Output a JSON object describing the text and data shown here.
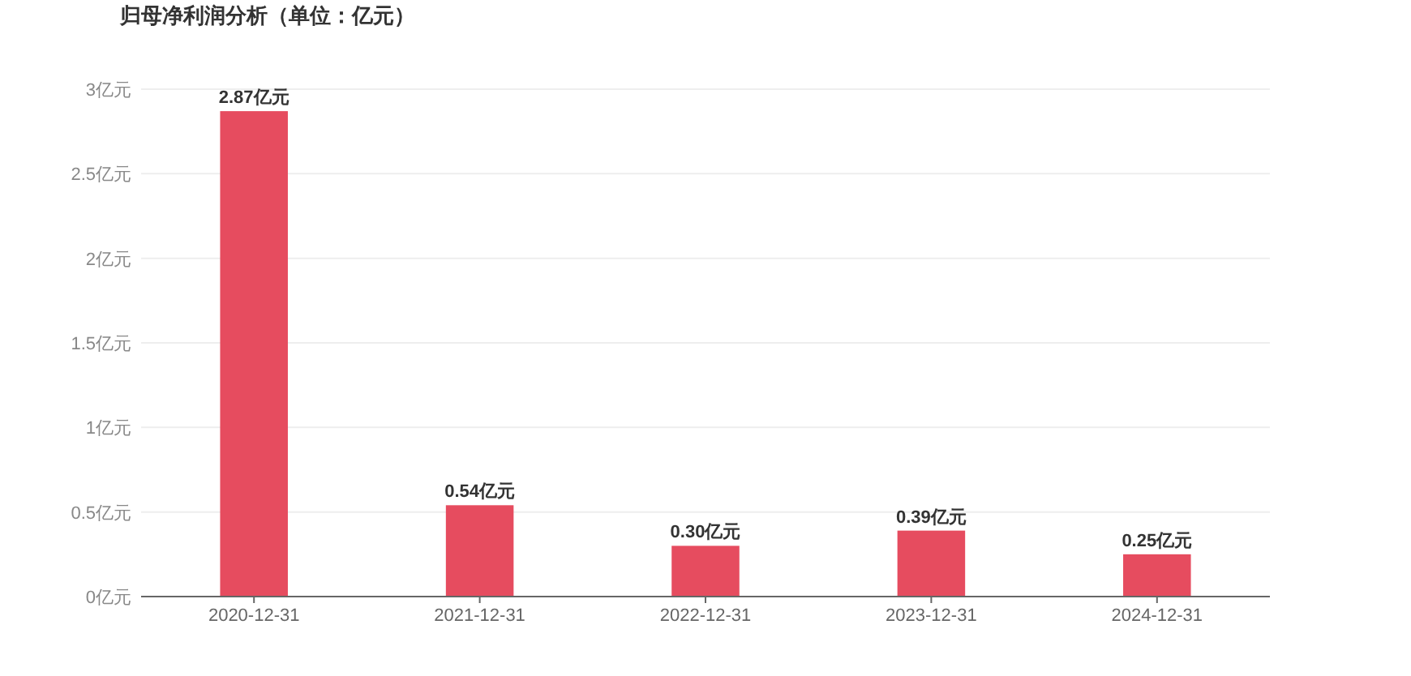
{
  "chart_data": {
    "type": "bar",
    "title": "归母净利润分析（单位：亿元）",
    "categories": [
      "2020-12-31",
      "2021-12-31",
      "2022-12-31",
      "2023-12-31",
      "2024-12-31"
    ],
    "values": [
      2.87,
      0.54,
      0.3,
      0.39,
      0.25
    ],
    "value_labels": [
      "2.87亿元",
      "0.54亿元",
      "0.30亿元",
      "0.39亿元",
      "0.25亿元"
    ],
    "color": "#e64c5f",
    "ylim": [
      0,
      3
    ],
    "yticks": [
      {
        "value": 0,
        "label": "0亿元"
      },
      {
        "value": 0.5,
        "label": "0.5亿元"
      },
      {
        "value": 1,
        "label": "1亿元"
      },
      {
        "value": 1.5,
        "label": "1.5亿元"
      },
      {
        "value": 2,
        "label": "2亿元"
      },
      {
        "value": 2.5,
        "label": "2.5亿元"
      },
      {
        "value": 3,
        "label": "3亿元"
      }
    ],
    "grid": "y"
  }
}
